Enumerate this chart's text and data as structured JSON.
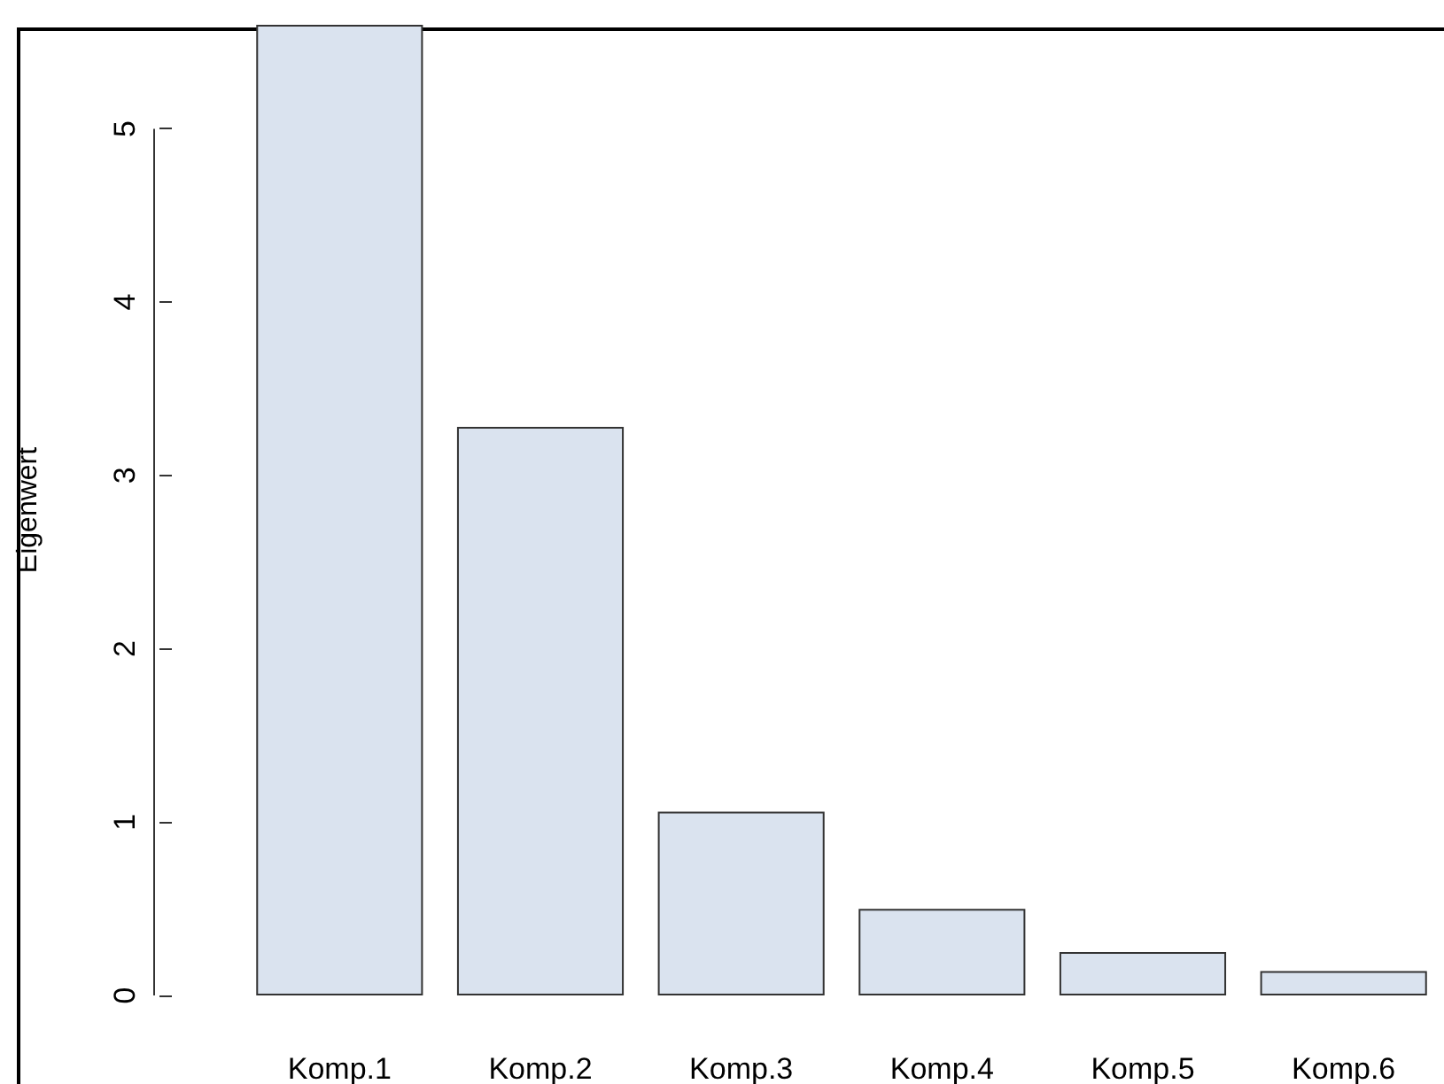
{
  "chart_data": {
    "type": "bar",
    "ylabel": "Eigenwert",
    "categories": [
      "Komp.1",
      "Komp.2",
      "Komp.3",
      "Komp.4",
      "Komp.5",
      "Komp.6"
    ],
    "values": [
      5.6,
      3.28,
      1.06,
      0.5,
      0.25,
      0.14
    ],
    "color": "#dae3ef",
    "ylim": [
      0,
      5.6
    ],
    "yticks": [
      0,
      1,
      2,
      3,
      4,
      5
    ],
    "grid": false
  }
}
